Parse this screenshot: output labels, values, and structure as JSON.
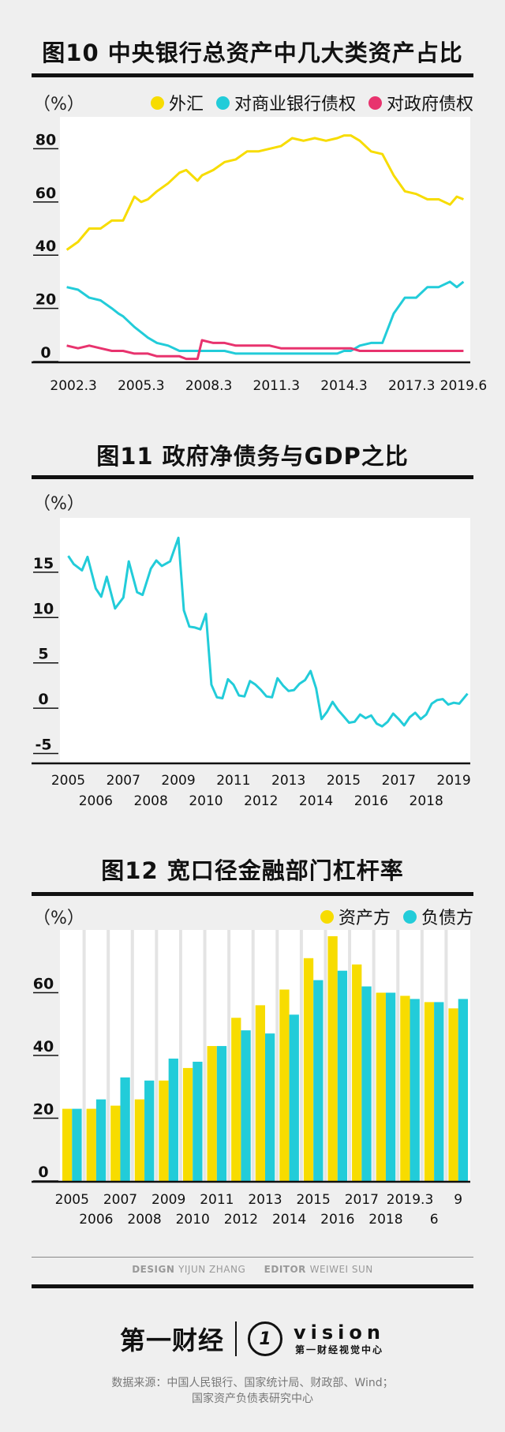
{
  "colors": {
    "yellow": "#f7dc00",
    "cyan": "#22ccd9",
    "pink": "#e8336e",
    "ink": "#111111"
  },
  "chart_data": [
    {
      "type": "line",
      "title": "图10 中央银行总资产中几大类资产占比",
      "unit_label": "（%）",
      "x_ticks": [
        "2002.3",
        "2005.3",
        "2008.3",
        "2011.3",
        "2014.3",
        "2017.3",
        "2019.6"
      ],
      "y_ticks": [
        "0",
        "20",
        "40",
        "60",
        "80"
      ],
      "ylim": [
        0,
        92
      ],
      "grid": false,
      "legend_position": "top-right",
      "x": [
        2002.0,
        2002.5,
        2003.0,
        2003.5,
        2004.0,
        2004.3,
        2004.5,
        2005.0,
        2005.3,
        2005.6,
        2006.0,
        2006.5,
        2007.0,
        2007.3,
        2007.8,
        2008.0,
        2008.5,
        2009.0,
        2009.5,
        2010.0,
        2010.5,
        2011.0,
        2011.5,
        2012.0,
        2012.5,
        2013.0,
        2013.5,
        2014.0,
        2014.3,
        2014.6,
        2015.0,
        2015.5,
        2016.0,
        2016.5,
        2017.0,
        2017.5,
        2018.0,
        2018.5,
        2019.0,
        2019.3,
        2019.6
      ],
      "series": [
        {
          "name": "外汇",
          "color": "yellow",
          "values": [
            42,
            45,
            50,
            50,
            53,
            53,
            53,
            62,
            60,
            61,
            64,
            67,
            71,
            72,
            68,
            70,
            72,
            75,
            76,
            79,
            79,
            80,
            81,
            84,
            83,
            84,
            83,
            84,
            85,
            85,
            83,
            79,
            78,
            70,
            64,
            63,
            61,
            61,
            59,
            62,
            61
          ]
        },
        {
          "name": "对商业银行债权",
          "color": "cyan",
          "values": [
            28,
            27,
            24,
            23,
            20,
            18,
            17,
            13,
            11,
            9,
            7,
            6,
            4,
            4,
            4,
            4,
            4,
            4,
            3,
            3,
            3,
            3,
            3,
            3,
            3,
            3,
            3,
            3,
            4,
            4,
            6,
            7,
            7,
            18,
            24,
            24,
            28,
            28,
            30,
            28,
            30
          ]
        },
        {
          "name": "对政府债权",
          "color": "pink",
          "values": [
            6,
            5,
            6,
            5,
            4,
            4,
            4,
            3,
            3,
            3,
            2,
            2,
            2,
            1,
            1,
            8,
            7,
            7,
            6,
            6,
            6,
            6,
            5,
            5,
            5,
            5,
            5,
            5,
            5,
            5,
            4,
            4,
            4,
            4,
            4,
            4,
            4,
            4,
            4,
            4,
            4
          ]
        }
      ]
    },
    {
      "type": "line",
      "title": "图11 政府净债务与GDP之比",
      "unit_label": "（%）",
      "x_ticks_top": [
        "2005",
        "2007",
        "2009",
        "2011",
        "2013",
        "2015",
        "2017",
        "2019"
      ],
      "x_ticks_bottom": [
        "2006",
        "2008",
        "2010",
        "2012",
        "2014",
        "2016",
        "2018"
      ],
      "y_ticks": [
        "-5",
        "0",
        "5",
        "10",
        "15"
      ],
      "ylim": [
        -6,
        21
      ],
      "grid": false,
      "x": [
        2005.0,
        2005.2,
        2005.5,
        2005.7,
        2006.0,
        2006.2,
        2006.4,
        2006.7,
        2007.0,
        2007.2,
        2007.5,
        2007.7,
        2008.0,
        2008.2,
        2008.4,
        2008.7,
        2009.0,
        2009.2,
        2009.4,
        2009.6,
        2009.8,
        2010.0,
        2010.2,
        2010.4,
        2010.6,
        2010.8,
        2011.0,
        2011.2,
        2011.4,
        2011.6,
        2011.8,
        2012.0,
        2012.2,
        2012.4,
        2012.6,
        2012.8,
        2013.0,
        2013.2,
        2013.4,
        2013.6,
        2013.8,
        2014.0,
        2014.2,
        2014.4,
        2014.6,
        2014.8,
        2015.0,
        2015.2,
        2015.4,
        2015.6,
        2015.8,
        2016.0,
        2016.2,
        2016.4,
        2016.6,
        2016.8,
        2017.0,
        2017.2,
        2017.4,
        2017.6,
        2017.8,
        2018.0,
        2018.2,
        2018.4,
        2018.6,
        2018.8,
        2019.0,
        2019.2,
        2019.5
      ],
      "series": [
        {
          "name": "",
          "color": "cyan",
          "values": [
            16.8,
            15.9,
            15.2,
            16.7,
            13.2,
            12.3,
            14.5,
            11.0,
            12.2,
            16.2,
            12.8,
            12.5,
            15.4,
            16.3,
            15.7,
            16.2,
            18.8,
            10.8,
            9.0,
            8.9,
            8.7,
            10.4,
            2.6,
            1.2,
            1.1,
            3.2,
            2.6,
            1.4,
            1.3,
            3.0,
            2.6,
            2.0,
            1.3,
            1.2,
            3.3,
            2.5,
            1.9,
            2.0,
            2.7,
            3.1,
            4.1,
            2.2,
            -1.2,
            -0.4,
            0.7,
            -0.2,
            -0.9,
            -1.6,
            -1.5,
            -0.7,
            -1.1,
            -0.8,
            -1.7,
            -2.0,
            -1.5,
            -0.6,
            -1.2,
            -1.9,
            -1.0,
            -0.5,
            -1.2,
            -0.7,
            0.5,
            0.9,
            1.0,
            0.4,
            0.6,
            0.5,
            1.6
          ]
        }
      ]
    },
    {
      "type": "bar",
      "title": "图12 宽口径金融部门杠杆率",
      "unit_label": "（%）",
      "legend_position": "top-right",
      "x_ticks_top": [
        "2005",
        "2007",
        "2009",
        "2011",
        "2013",
        "2015",
        "2017",
        "2019.3",
        "9"
      ],
      "x_ticks_bottom": [
        "2006",
        "2008",
        "2010",
        "2012",
        "2014",
        "2016",
        "2018",
        "6"
      ],
      "y_ticks": [
        "0",
        "20",
        "40",
        "60"
      ],
      "ylim": [
        0,
        80
      ],
      "grid": true,
      "categories": [
        "2005",
        "2006",
        "2007",
        "2008",
        "2009",
        "2010",
        "2011",
        "2012",
        "2013",
        "2014",
        "2015",
        "2016",
        "2017",
        "2018",
        "2019.3",
        "6",
        "9"
      ],
      "series": [
        {
          "name": "资产方",
          "color": "yellow",
          "values": [
            23,
            23,
            24,
            26,
            32,
            36,
            43,
            52,
            56,
            61,
            71,
            78,
            69,
            60,
            59,
            57,
            55
          ]
        },
        {
          "name": "负债方",
          "color": "cyan",
          "values": [
            23,
            26,
            33,
            32,
            39,
            38,
            43,
            48,
            47,
            53,
            64,
            67,
            62,
            60,
            58,
            57,
            58
          ]
        }
      ]
    }
  ],
  "credits": {
    "design_label": "DESIGN",
    "design_name": "YIJUN ZHANG",
    "editor_label": "EDITOR",
    "editor_name": "WEIWEI SUN"
  },
  "brand": {
    "name": "第一财经",
    "logo_glyph": "1",
    "vision": "vision",
    "sub": "第一财经视觉中心"
  },
  "source": {
    "line1": "数据来源：中国人民银行、国家统计局、财政部、Wind；",
    "line2": "国家资产负债表研究中心"
  }
}
